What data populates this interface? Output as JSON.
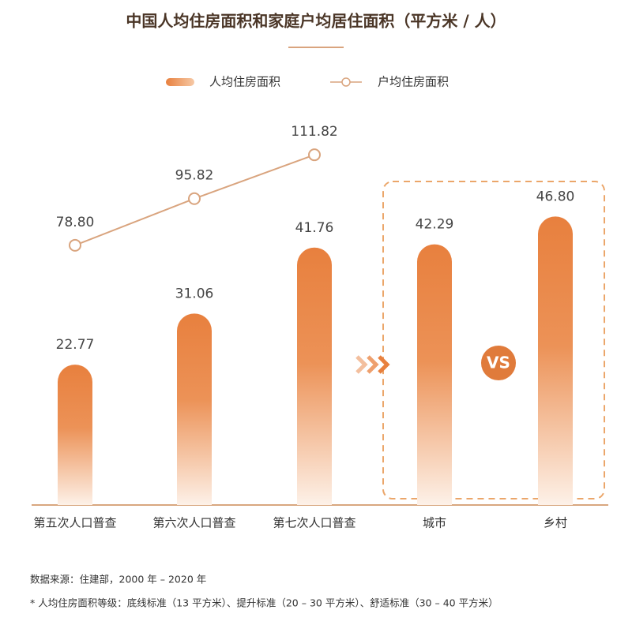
{
  "chart_data": {
    "type": "bar",
    "title": "中国人均住房面积和家庭户均居住面积（平方米 / 人）",
    "categories": [
      "第五次人口普查",
      "第六次人口普查",
      "第七次人口普查",
      "城市",
      "乡村"
    ],
    "series": [
      {
        "name": "人均住房面积",
        "type": "bar",
        "color": "#e8803e",
        "values": [
          22.77,
          31.06,
          41.76,
          42.29,
          46.8
        ],
        "value_labels": [
          "22.77",
          "31.06",
          "41.76",
          "42.29",
          "46.80"
        ]
      },
      {
        "name": "户均住房面积",
        "type": "line",
        "axis": "y2",
        "color": "#d9a47e",
        "values": [
          78.8,
          95.82,
          111.82,
          null,
          null
        ],
        "value_labels": [
          "78.80",
          "95.82",
          "111.82",
          null,
          null
        ]
      }
    ],
    "ylim": [
      0,
      64
    ],
    "y2lim": [
      -16,
      128
    ],
    "annotations": [
      "VS"
    ],
    "notes": [
      "数据来源：住建部，2000 年 – 2020 年",
      "* 人均住房面积等级：底线标准（13 平方米）、提升标准（20 – 30 平方米）、舒适标准（30 – 40 平方米）"
    ]
  }
}
